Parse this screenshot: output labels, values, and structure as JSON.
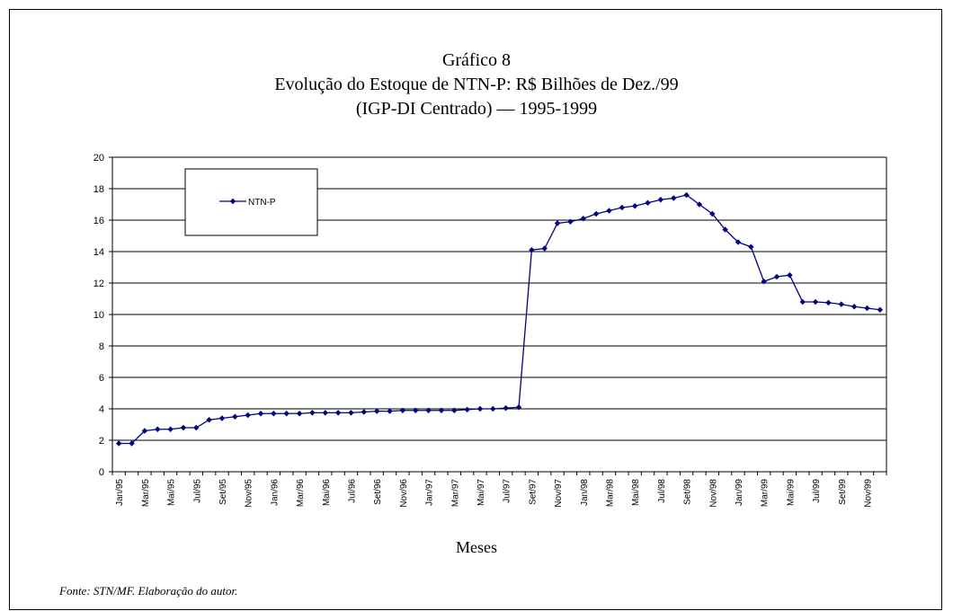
{
  "figure": {
    "title_line1": "Gráfico 8",
    "title_line2": "Evolução do Estoque de NTN-P: R$ Bilhões de Dez./99",
    "title_line3": "(IGP-DI Centrado) — 1995-1999",
    "source": "Fonte: STN/MF. Elaboração do autor."
  },
  "chart_data": {
    "type": "line",
    "title": "Gráfico 8 — Evolução do Estoque de NTN-P: R$ Bilhões de Dez./99 (IGP-DI Centrado) — 1995-1999",
    "xlabel": "Meses",
    "ylabel": "",
    "ylim": [
      0,
      20
    ],
    "yticks": [
      0,
      2,
      4,
      6,
      8,
      10,
      12,
      14,
      16,
      18,
      20
    ],
    "grid": "horizontal",
    "legend_position": "top-left",
    "categories": [
      "Jan/95",
      "Fev/95",
      "Mar/95",
      "Abr/95",
      "Mai/95",
      "Jun/95",
      "Jul/95",
      "Ago/95",
      "Set/95",
      "Out/95",
      "Nov/95",
      "Dez/95",
      "Jan/96",
      "Fev/96",
      "Mar/96",
      "Abr/96",
      "Mai/96",
      "Jun/96",
      "Jul/96",
      "Ago/96",
      "Set/96",
      "Out/96",
      "Nov/96",
      "Dez/96",
      "Jan/97",
      "Fev/97",
      "Mar/97",
      "Abr/97",
      "Mai/97",
      "Jun/97",
      "Jul/97",
      "Ago/97",
      "Set/97",
      "Out/97",
      "Nov/97",
      "Dez/97",
      "Jan/98",
      "Fev/98",
      "Mar/98",
      "Abr/98",
      "Mai/98",
      "Jun/98",
      "Jul/98",
      "Ago/98",
      "Set/98",
      "Out/98",
      "Nov/98",
      "Dez/98",
      "Jan/99",
      "Fev/99",
      "Mar/99",
      "Abr/99",
      "Mai/99",
      "Jun/99",
      "Jul/99",
      "Ago/99",
      "Set/99",
      "Out/99",
      "Nov/99",
      "Dez/99"
    ],
    "xtick_labels": [
      "Jan/95",
      "Mar/95",
      "Mai/95",
      "Jul/95",
      "Set/95",
      "Nov/95",
      "Jan/96",
      "Mar/96",
      "Mai/96",
      "Jul/96",
      "Set/96",
      "Nov/96",
      "Jan/97",
      "Mar/97",
      "Mai/97",
      "Jul/97",
      "Set/97",
      "Nov/97",
      "Jan/98",
      "Mar/98",
      "Mai/98",
      "Jul/98",
      "Set/98",
      "Nov/98",
      "Jan/99",
      "Mar/99",
      "Mai/99",
      "Jul/99",
      "Set/99",
      "Nov/99"
    ],
    "series": [
      {
        "name": "NTN-P",
        "color": "#000080",
        "values": [
          1.8,
          1.8,
          2.6,
          2.7,
          2.7,
          2.8,
          2.8,
          3.3,
          3.4,
          3.5,
          3.6,
          3.7,
          3.7,
          3.7,
          3.7,
          3.75,
          3.75,
          3.75,
          3.75,
          3.8,
          3.85,
          3.85,
          3.9,
          3.9,
          3.9,
          3.9,
          3.9,
          3.95,
          4.0,
          4.0,
          4.05,
          4.1,
          14.1,
          14.2,
          15.8,
          15.9,
          16.1,
          16.4,
          16.6,
          16.8,
          16.9,
          17.1,
          17.3,
          17.4,
          17.6,
          17.0,
          16.4,
          15.4,
          14.6,
          14.3,
          12.1,
          12.4,
          12.5,
          10.8,
          10.8,
          10.75,
          10.65,
          10.5,
          10.4,
          10.3
        ]
      }
    ]
  }
}
